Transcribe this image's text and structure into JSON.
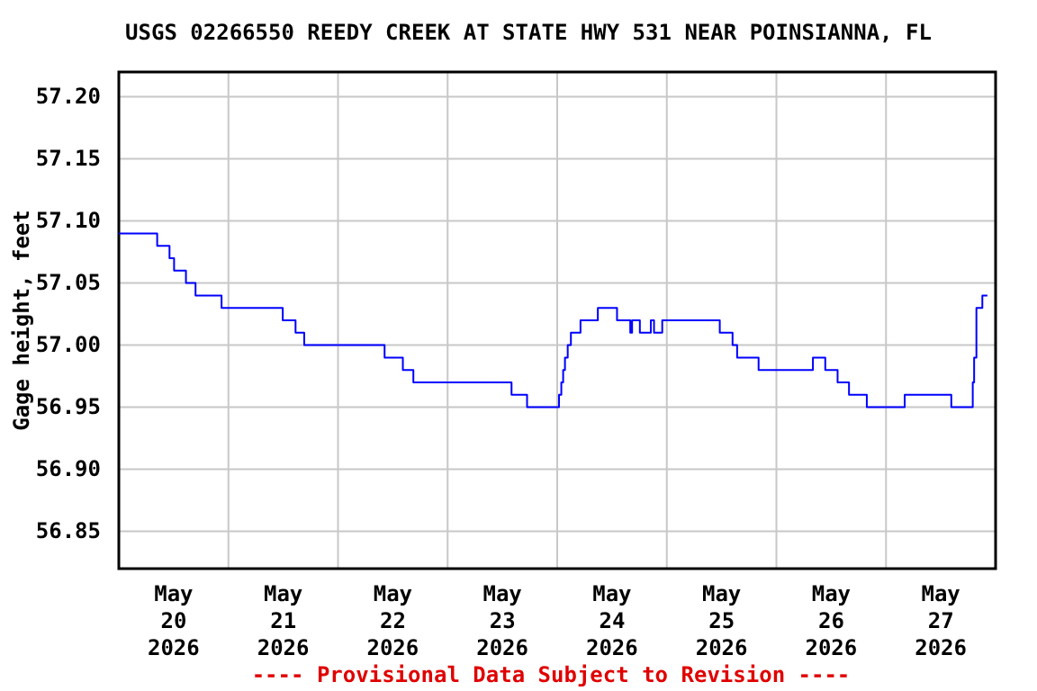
{
  "chart_data": {
    "type": "step",
    "title": "USGS 02266550 REEDY CREEK AT STATE HWY 531 NEAR POINSIANNA, FL",
    "ylabel": "Gage height, feet",
    "annotations": [
      "---- Provisional Data Subject to Revision ----"
    ],
    "x": [
      "2026-05-20T00:00",
      "2026-05-20T08:24",
      "2026-05-20T11:06",
      "2026-05-20T12:06",
      "2026-05-20T14:42",
      "2026-05-20T16:48",
      "2026-05-20T22:30",
      "2026-05-21T11:54",
      "2026-05-21T14:42",
      "2026-05-21T16:36",
      "2026-05-22T10:12",
      "2026-05-22T14:12",
      "2026-05-22T16:30",
      "2026-05-23T14:00",
      "2026-05-23T17:24",
      "2026-05-24T00:24",
      "2026-05-24T00:54",
      "2026-05-24T01:18",
      "2026-05-24T01:42",
      "2026-05-24T02:18",
      "2026-05-24T03:00",
      "2026-05-24T05:06",
      "2026-05-24T08:54",
      "2026-05-24T13:06",
      "2026-05-24T16:00",
      "2026-05-24T16:24",
      "2026-05-24T18:06",
      "2026-05-24T20:30",
      "2026-05-24T21:12",
      "2026-05-24T23:00",
      "2026-05-25T11:36",
      "2026-05-25T14:24",
      "2026-05-25T15:24",
      "2026-05-25T20:06",
      "2026-05-26T08:00",
      "2026-05-26T10:42",
      "2026-05-26T13:24",
      "2026-05-26T15:54",
      "2026-05-26T19:48",
      "2026-05-27T04:06",
      "2026-05-27T14:18",
      "2026-05-27T19:00",
      "2026-05-27T19:18",
      "2026-05-27T19:48",
      "2026-05-27T21:06",
      "2026-05-27T22:12"
    ],
    "series": [
      {
        "color": "#0000ff",
        "values": [
          57.09,
          57.08,
          57.07,
          57.06,
          57.05,
          57.04,
          57.03,
          57.02,
          57.01,
          57.0,
          56.99,
          56.98,
          56.97,
          56.96,
          56.95,
          56.96,
          56.97,
          56.98,
          56.99,
          57.0,
          57.01,
          57.02,
          57.03,
          57.02,
          57.01,
          57.02,
          57.01,
          57.02,
          57.01,
          57.02,
          57.01,
          57.0,
          56.99,
          56.98,
          56.99,
          56.98,
          56.97,
          56.96,
          56.95,
          56.96,
          56.95,
          56.97,
          56.99,
          57.03,
          57.04,
          57.04
        ]
      }
    ],
    "xlim": [
      "2026-05-20T00:00",
      "2026-05-28T00:00"
    ],
    "xticks": [
      {
        "value": "2026-05-20T12:00",
        "label": "May\n20\n2026"
      },
      {
        "value": "2026-05-21T00:00",
        "label": null
      },
      {
        "value": "2026-05-21T12:00",
        "label": "May\n21\n2026"
      },
      {
        "value": "2026-05-22T00:00",
        "label": null
      },
      {
        "value": "2026-05-22T12:00",
        "label": "May\n22\n2026"
      },
      {
        "value": "2026-05-23T00:00",
        "label": null
      },
      {
        "value": "2026-05-23T12:00",
        "label": "May\n23\n2026"
      },
      {
        "value": "2026-05-24T00:00",
        "label": null
      },
      {
        "value": "2026-05-24T12:00",
        "label": "May\n24\n2026"
      },
      {
        "value": "2026-05-25T00:00",
        "label": null
      },
      {
        "value": "2026-05-25T12:00",
        "label": "May\n25\n2026"
      },
      {
        "value": "2026-05-26T00:00",
        "label": null
      },
      {
        "value": "2026-05-26T12:00",
        "label": "May\n26\n2026"
      },
      {
        "value": "2026-05-27T00:00",
        "label": null
      },
      {
        "value": "2026-05-27T12:00",
        "label": "May\n27\n2026"
      }
    ],
    "ylim": [
      56.82,
      57.22
    ],
    "yticks": [
      {
        "value": 56.85,
        "label": "56.85"
      },
      {
        "value": 56.9,
        "label": "56.90"
      },
      {
        "value": 56.95,
        "label": "56.95"
      },
      {
        "value": 57.0,
        "label": "57.00"
      },
      {
        "value": 57.05,
        "label": "57.05"
      },
      {
        "value": 57.1,
        "label": "57.10"
      },
      {
        "value": 57.15,
        "label": "57.15"
      },
      {
        "value": 57.2,
        "label": "57.20"
      }
    ],
    "grid": true,
    "line_style": "solid"
  }
}
